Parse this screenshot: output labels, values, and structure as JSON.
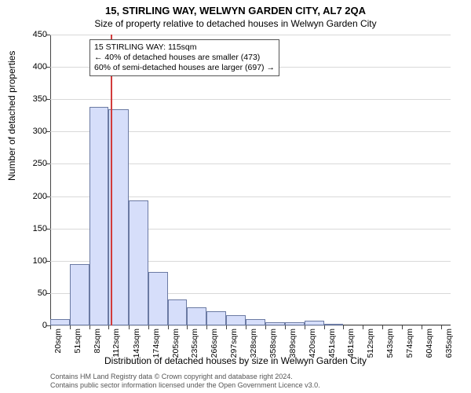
{
  "chart": {
    "type": "histogram",
    "title_main": "15, STIRLING WAY, WELWYN GARDEN CITY, AL7 2QA",
    "title_sub": "Size of property relative to detached houses in Welwyn Garden City",
    "y_label": "Number of detached properties",
    "x_label": "Distribution of detached houses by size in Welwyn Garden City",
    "background_color": "#ffffff",
    "grid_color": "#d9d9d9",
    "axis_color": "#444444",
    "bar_fill": "#d6defa",
    "bar_border": "#6b7aa3",
    "annotation": {
      "line1": "15 STIRLING WAY: 115sqm",
      "line2": "← 40% of detached houses are smaller (473)",
      "line3": "60% of semi-detached houses are larger (697) →",
      "border_color": "#555555",
      "fontsize": 10.5
    },
    "vline": {
      "x_value": 115,
      "color": "#d23b3b",
      "width": 2
    },
    "x": {
      "min": 20,
      "max": 650,
      "ticks": [
        20,
        51,
        82,
        112,
        143,
        174,
        205,
        235,
        266,
        297,
        328,
        358,
        389,
        420,
        451,
        481,
        512,
        543,
        574,
        604,
        635
      ],
      "tick_labels": [
        "20sqm",
        "51sqm",
        "82sqm",
        "112sqm",
        "143sqm",
        "174sqm",
        "205sqm",
        "235sqm",
        "266sqm",
        "297sqm",
        "328sqm",
        "358sqm",
        "389sqm",
        "420sqm",
        "451sqm",
        "481sqm",
        "512sqm",
        "543sqm",
        "574sqm",
        "604sqm",
        "635sqm"
      ]
    },
    "y": {
      "min": 0,
      "max": 450,
      "ticks": [
        0,
        50,
        100,
        150,
        200,
        250,
        300,
        350,
        400,
        450
      ]
    },
    "bins": [
      {
        "start": 20,
        "end": 51,
        "count": 10
      },
      {
        "start": 51,
        "end": 82,
        "count": 95
      },
      {
        "start": 82,
        "end": 112,
        "count": 338
      },
      {
        "start": 112,
        "end": 143,
        "count": 335
      },
      {
        "start": 143,
        "end": 174,
        "count": 193
      },
      {
        "start": 174,
        "end": 205,
        "count": 83
      },
      {
        "start": 205,
        "end": 235,
        "count": 40
      },
      {
        "start": 235,
        "end": 266,
        "count": 28
      },
      {
        "start": 266,
        "end": 297,
        "count": 22
      },
      {
        "start": 297,
        "end": 328,
        "count": 16
      },
      {
        "start": 328,
        "end": 358,
        "count": 10
      },
      {
        "start": 358,
        "end": 389,
        "count": 5
      },
      {
        "start": 389,
        "end": 420,
        "count": 5
      },
      {
        "start": 420,
        "end": 451,
        "count": 7
      },
      {
        "start": 451,
        "end": 481,
        "count": 2
      },
      {
        "start": 481,
        "end": 512,
        "count": 0
      },
      {
        "start": 512,
        "end": 543,
        "count": 0
      },
      {
        "start": 543,
        "end": 574,
        "count": 1
      },
      {
        "start": 574,
        "end": 604,
        "count": 0
      },
      {
        "start": 604,
        "end": 635,
        "count": 1
      }
    ],
    "footer_line1": "Contains HM Land Registry data © Crown copyright and database right 2024.",
    "footer_line2": "Contains public sector information licensed under the Open Government Licence v3.0."
  }
}
